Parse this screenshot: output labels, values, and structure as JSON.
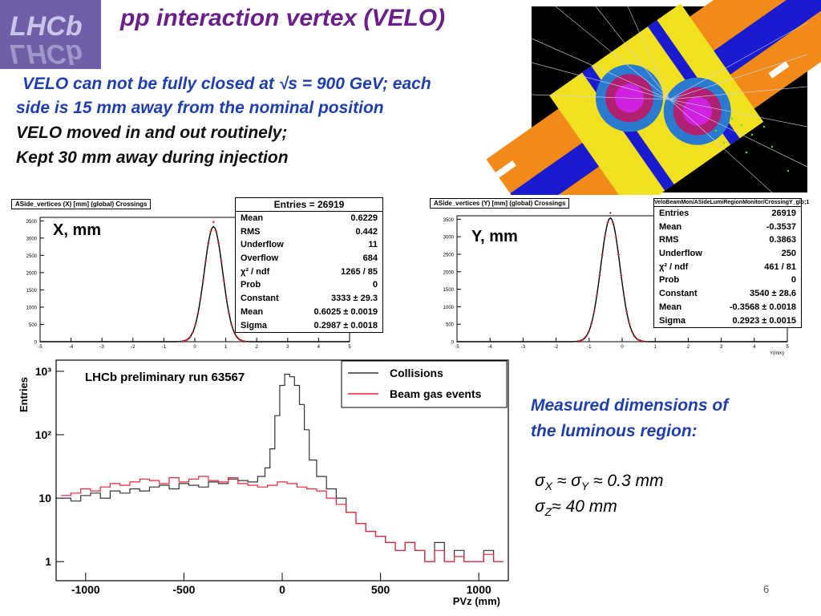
{
  "slide": {
    "title": "pp interaction vertex (VELO)",
    "logo_text": "LHCb",
    "bullets": [
      "VELO can not be fully closed at √s = 900 GeV; each",
      "side is 15 mm away from the nominal position",
      "VELO moved in and out routinely;",
      "Kept 30 mm away during injection"
    ],
    "measured_title_line1": "Measured dimensions of",
    "measured_title_line2": "the luminous region:",
    "sigma_xy_sym1": "σ",
    "sigma_xy_sub1": "X",
    "sigma_xy_mid": " ≈ ",
    "sigma_xy_sym2": "σ",
    "sigma_xy_sub2": "Y",
    "sigma_xy_value": " ≈ 0.3 mm",
    "sigma_z_sym": "σ",
    "sigma_z_sub": "Z",
    "sigma_z_value": "≈ 40 mm",
    "page_number": "6",
    "colors": {
      "title": "#6a1f8a",
      "measured": "#1f3fae",
      "beamgas": "#e8243c"
    }
  },
  "chart_data": [
    {
      "type": "bar",
      "title": "ASide_vertices (X) [mm] (global) Crossings",
      "label": "X, mm",
      "xlim": [
        -5,
        5
      ],
      "ylim": [
        0,
        3600
      ],
      "yticks": [
        0,
        500,
        1000,
        1500,
        2000,
        2500,
        3000,
        3500
      ],
      "xticks": [
        -5,
        -4,
        -3,
        -2,
        -1,
        0,
        1,
        2,
        3,
        4,
        5
      ],
      "fit": {
        "constant": 3333,
        "mean": 0.6025,
        "sigma": 0.2987
      },
      "stats_header": "Entries = 26919",
      "stats": [
        {
          "k": "Mean",
          "v": "0.6229"
        },
        {
          "k": "RMS",
          "v": "0.442"
        },
        {
          "k": "Underflow",
          "v": "11"
        },
        {
          "k": "Overflow",
          "v": "684"
        },
        {
          "k": "χ² / ndf",
          "v": "1265 / 85"
        },
        {
          "k": "Prob",
          "v": "0"
        },
        {
          "k": "Constant",
          "v": "3333 ± 29.3"
        },
        {
          "k": "Mean",
          "v": "0.6025 ± 0.0019"
        },
        {
          "k": "Sigma",
          "v": "0.2987 ± 0.0018"
        }
      ]
    },
    {
      "type": "bar",
      "title": "ASide_vertices (Y) [mm] (global) Crossings",
      "label": "Y, mm",
      "xlabel": "Y(mm)",
      "xlim": [
        -5,
        5
      ],
      "ylim": [
        0,
        3600
      ],
      "yticks": [
        0,
        500,
        1000,
        1500,
        2000,
        2500,
        3000,
        3500
      ],
      "xticks": [
        -5,
        -4,
        -3,
        -2,
        -1,
        0,
        1,
        2,
        3,
        4,
        5
      ],
      "fit": {
        "constant": 3540,
        "mean": -0.3568,
        "sigma": 0.2923
      },
      "stats_header": "VeloBeamMon/ASideLumiRegionMonitor/CrossingY_glo;1",
      "stats": [
        {
          "k": "Entries",
          "v": "26919"
        },
        {
          "k": "Mean",
          "v": "-0.3537"
        },
        {
          "k": "RMS",
          "v": "0.3863"
        },
        {
          "k": "Underflow",
          "v": "250"
        },
        {
          "k": "χ² / ndf",
          "v": "461 / 81"
        },
        {
          "k": "Prob",
          "v": "0"
        },
        {
          "k": "Constant",
          "v": "3540 ± 28.6"
        },
        {
          "k": "Mean",
          "v": "-0.3568 ± 0.0018"
        },
        {
          "k": "Sigma",
          "v": "0.2923 ± 0.0015"
        }
      ]
    },
    {
      "type": "line",
      "title": "LHCb preliminary run 63567",
      "xlabel": "PVz (mm)",
      "ylabel": "Entries",
      "xlim": [
        -1150,
        1150
      ],
      "ylim_log": [
        0.5,
        1500
      ],
      "log_y": true,
      "xticks": [
        -1000,
        -500,
        0,
        500,
        1000
      ],
      "yticks": [
        {
          "v": 1,
          "label": "1"
        },
        {
          "v": 10,
          "label": "10"
        },
        {
          "v": 100,
          "label": "10²"
        },
        {
          "v": 1000,
          "label": "10³"
        }
      ],
      "legend_position": "top-right",
      "series": [
        {
          "name": "Collisions",
          "color": "#333333",
          "x": [
            -1100,
            -1050,
            -1000,
            -950,
            -900,
            -850,
            -800,
            -750,
            -700,
            -650,
            -600,
            -550,
            -500,
            -450,
            -400,
            -350,
            -300,
            -250,
            -200,
            -150,
            -100,
            -75,
            -50,
            -25,
            0,
            25,
            50,
            75,
            100,
            125,
            150,
            200,
            250,
            300,
            350,
            400,
            450,
            500,
            550,
            600,
            650,
            700,
            750,
            800,
            850,
            900,
            950,
            1000,
            1050,
            1100
          ],
          "y": [
            10,
            9,
            11,
            12,
            10,
            13,
            12,
            14,
            13,
            15,
            16,
            14,
            17,
            16,
            15,
            18,
            17,
            20,
            19,
            18,
            22,
            30,
            60,
            200,
            600,
            900,
            820,
            600,
            300,
            120,
            40,
            22,
            14,
            10,
            6,
            4,
            3,
            2.5,
            2,
            1.5,
            2,
            1.5,
            1,
            2,
            1,
            1.5,
            1,
            1,
            1.5,
            1
          ]
        },
        {
          "name": "Beam gas events",
          "color": "#e8243c",
          "x": [
            -1100,
            -1050,
            -1000,
            -950,
            -900,
            -850,
            -800,
            -750,
            -700,
            -650,
            -600,
            -550,
            -500,
            -450,
            -400,
            -350,
            -300,
            -250,
            -200,
            -150,
            -100,
            -50,
            0,
            50,
            100,
            150,
            200,
            250,
            300,
            350,
            400,
            450,
            500,
            550,
            600,
            650,
            700,
            750,
            800,
            850,
            900,
            950,
            1000,
            1050,
            1100
          ],
          "y": [
            11,
            12,
            14,
            13,
            15,
            17,
            16,
            18,
            20,
            19,
            17,
            21,
            18,
            20,
            22,
            19,
            18,
            21,
            17,
            16,
            15,
            16,
            18,
            17,
            15,
            14,
            13,
            10,
            8,
            6,
            4,
            3,
            2.5,
            2,
            1.5,
            2,
            1.5,
            1,
            1.5,
            1,
            1.2,
            1,
            1,
            1.3,
            1
          ]
        }
      ]
    }
  ]
}
